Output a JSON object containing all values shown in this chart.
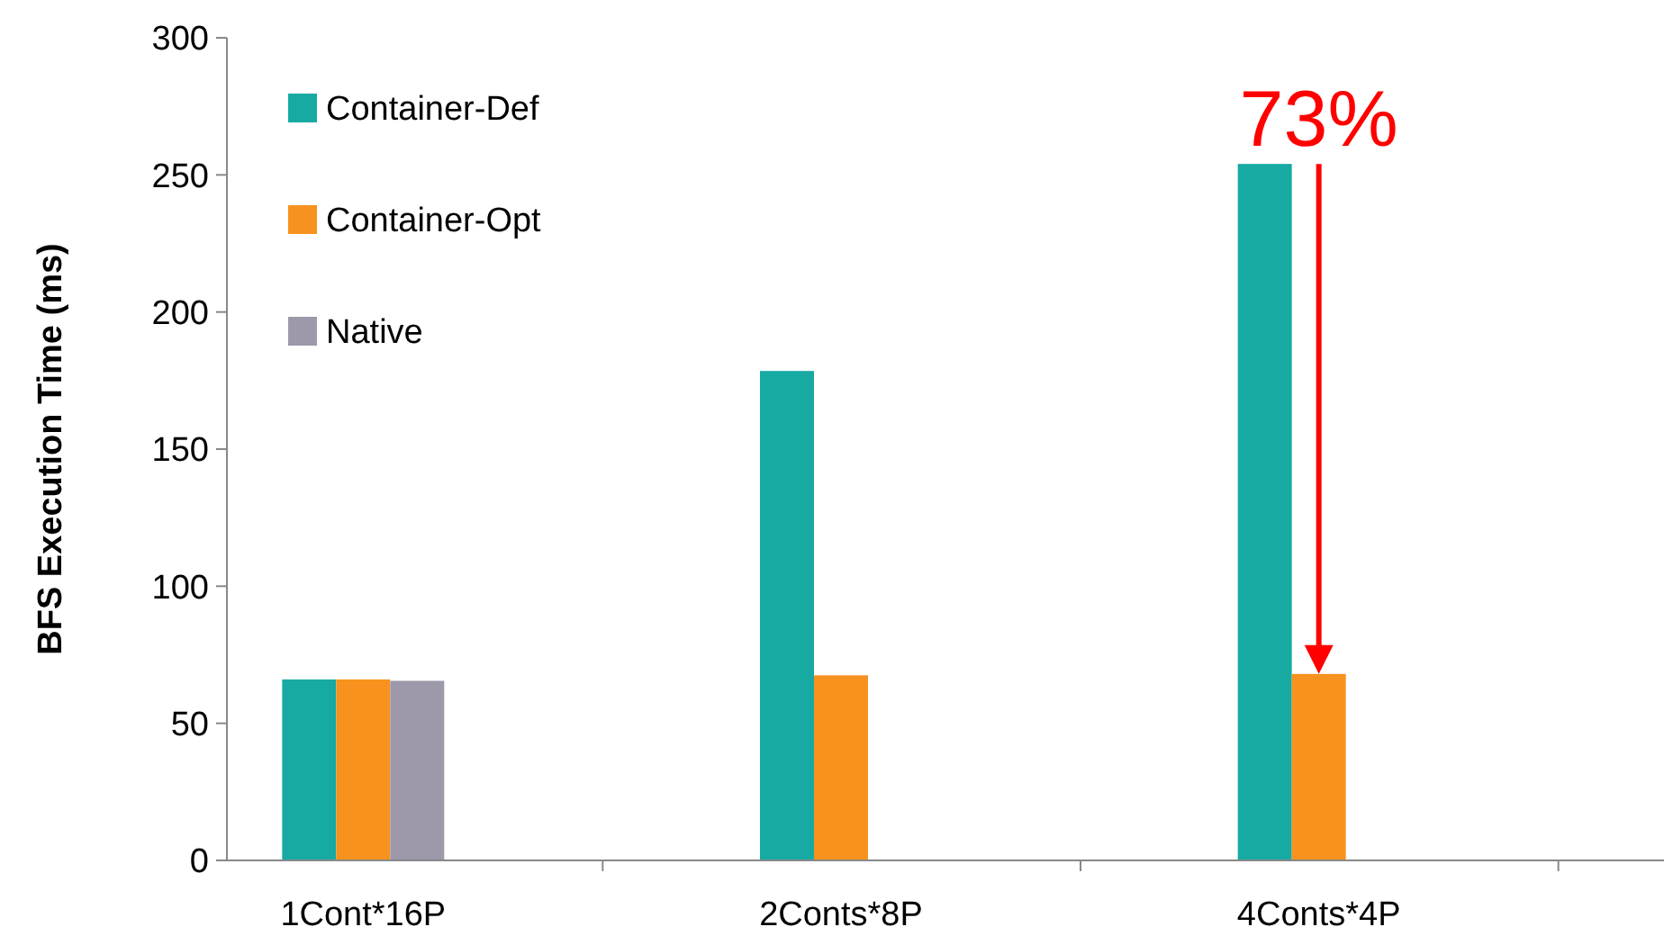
{
  "chart_data": {
    "type": "bar",
    "ylabel": "BFS Execution Time (ms)",
    "categories": [
      "1Cont*16P",
      "2Conts*8P",
      "4Conts*4P"
    ],
    "series": [
      {
        "name": "Container-Def",
        "color": "#17aaa3",
        "values": [
          66,
          178.5,
          254
        ]
      },
      {
        "name": "Container-Opt",
        "color": "#f7921e",
        "values": [
          66,
          67.5,
          68
        ]
      },
      {
        "name": "Native",
        "color": "#9d99ab",
        "values": [
          65.5,
          null,
          null
        ]
      }
    ],
    "ylim": [
      0,
      300
    ],
    "yticks": [
      0,
      50,
      100,
      150,
      200,
      250,
      300
    ],
    "grid": false,
    "legend": "top left",
    "annotations": [
      "73%"
    ]
  }
}
